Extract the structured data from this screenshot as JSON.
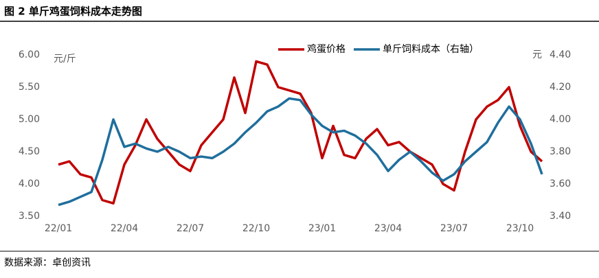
{
  "chart_data": {
    "type": "line",
    "title": "图 2 单斤鸡蛋饲料成本走势图",
    "source": "数据来源：卓创资讯",
    "y_label": "元/斤",
    "y2_label": "元",
    "categories": [
      "22/01",
      null,
      null,
      null,
      null,
      null,
      "22/04",
      null,
      null,
      null,
      null,
      null,
      "22/07",
      null,
      null,
      null,
      null,
      null,
      "22/10",
      null,
      null,
      null,
      null,
      null,
      "23/01",
      null,
      null,
      null,
      null,
      null,
      "23/04",
      null,
      null,
      null,
      null,
      null,
      "23/07",
      null,
      null,
      null,
      null,
      null,
      "23/10",
      null,
      null
    ],
    "series": [
      {
        "name": "鸡蛋价格",
        "color": "#c00000",
        "values": [
          4.3,
          4.35,
          4.15,
          4.1,
          3.75,
          3.7,
          4.3,
          4.6,
          5.0,
          4.7,
          4.5,
          4.3,
          4.2,
          4.6,
          4.8,
          5.0,
          5.65,
          5.1,
          5.9,
          5.85,
          5.5,
          5.45,
          5.4,
          5.1,
          4.4,
          4.9,
          4.45,
          4.4,
          4.7,
          4.85,
          4.6,
          4.65,
          4.5,
          4.4,
          4.3,
          4.0,
          3.9,
          4.5,
          5.0,
          5.2,
          5.3,
          5.5,
          4.9,
          4.5,
          4.35
        ]
      },
      {
        "name": "单斤饲料成本（右轴）",
        "color": "#1f6e9c",
        "axis": "y2",
        "values": [
          3.47,
          3.49,
          3.52,
          3.55,
          3.75,
          4.0,
          3.83,
          3.85,
          3.82,
          3.8,
          3.83,
          3.8,
          3.76,
          3.77,
          3.76,
          3.8,
          3.85,
          3.92,
          3.98,
          4.05,
          4.08,
          4.13,
          4.12,
          4.03,
          3.96,
          3.92,
          3.93,
          3.9,
          3.85,
          3.78,
          3.68,
          3.75,
          3.8,
          3.74,
          3.67,
          3.62,
          3.66,
          3.74,
          3.8,
          3.86,
          3.98,
          4.08,
          4.0,
          3.85,
          3.66
        ]
      }
    ],
    "ylim": [
      3.5,
      6.0
    ],
    "yticks": [
      {
        "value": 3.5,
        "label": "3.50"
      },
      {
        "value": 4.0,
        "label": "4.00"
      },
      {
        "value": 4.5,
        "label": "4.50"
      },
      {
        "value": 5.0,
        "label": "5.00"
      },
      {
        "value": 5.5,
        "label": "5.50"
      },
      {
        "value": 6.0,
        "label": "6.00"
      }
    ],
    "y2lim": [
      3.4,
      4.4
    ],
    "y2ticks": [
      {
        "value": 3.4,
        "label": "3.40"
      },
      {
        "value": 3.6,
        "label": "3.60"
      },
      {
        "value": 3.8,
        "label": "3.80"
      },
      {
        "value": 4.0,
        "label": "4.00"
      },
      {
        "value": 4.2,
        "label": "4.20"
      },
      {
        "value": 4.4,
        "label": "4.40"
      }
    ],
    "legend": "top"
  }
}
